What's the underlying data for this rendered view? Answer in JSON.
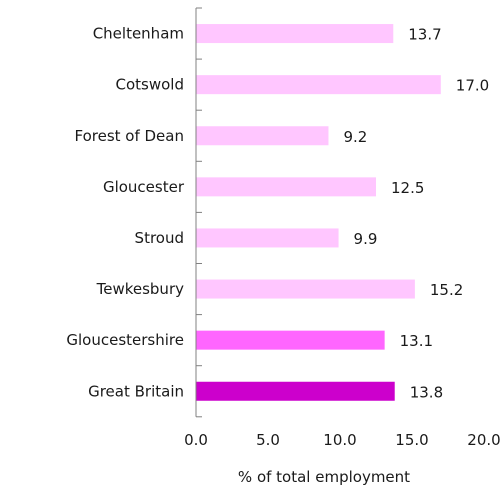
{
  "chart_data": {
    "type": "bar",
    "orientation": "horizontal",
    "categories": [
      "Cheltenham",
      "Cotswold",
      "Forest of Dean",
      "Gloucester",
      "Stroud",
      "Tewkesbury",
      "Gloucestershire",
      "Great Britain"
    ],
    "values": [
      13.7,
      17.0,
      9.2,
      12.5,
      9.9,
      15.2,
      13.1,
      13.8
    ],
    "value_labels": [
      "13.7",
      "17.0",
      "9.2",
      "12.5",
      "9.9",
      "15.2",
      "13.1",
      "13.8"
    ],
    "colors": [
      "#ffc6ff",
      "#ffc6ff",
      "#ffc6ff",
      "#ffc6ff",
      "#ffc6ff",
      "#ffc6ff",
      "#ff66ff",
      "#cc00cc"
    ],
    "xlabel": "% of total employment",
    "xlim": [
      0,
      20
    ],
    "xticks": [
      "0.0",
      "5.0",
      "10.0",
      "15.0",
      "20.0"
    ],
    "grid": false,
    "legend": "none"
  }
}
